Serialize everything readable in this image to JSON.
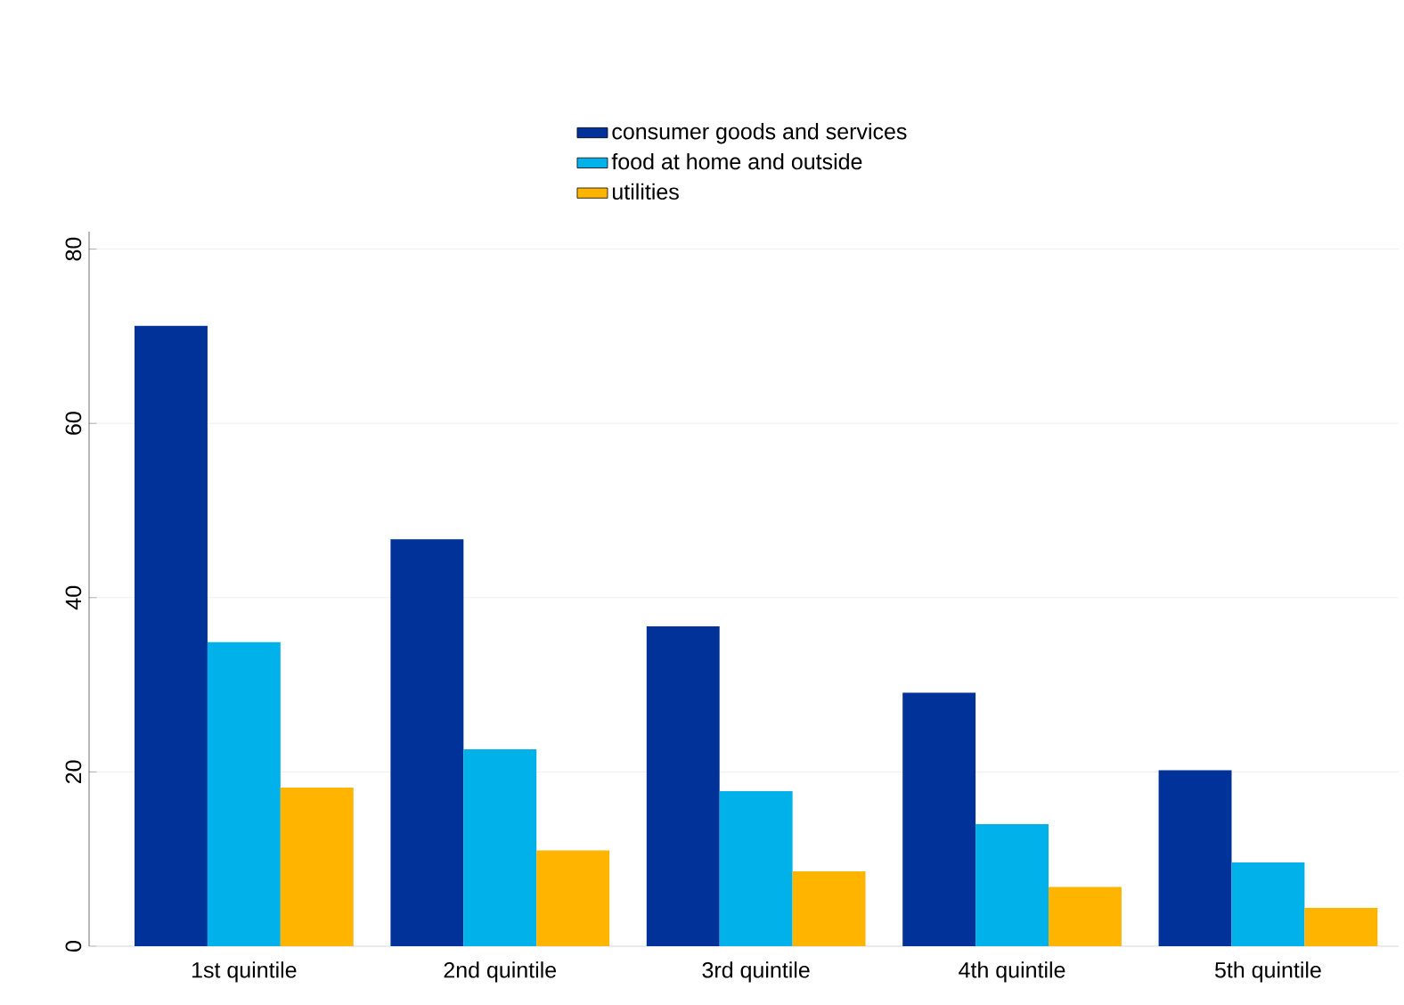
{
  "chart_data": {
    "type": "bar",
    "categories": [
      "1st quintile",
      "2nd quintile",
      "3rd quintile",
      "4th quintile",
      "5th quintile"
    ],
    "series": [
      {
        "name": "consumer goods and services",
        "color": "#003299",
        "values": [
          71.2,
          46.7,
          36.7,
          29.1,
          20.2
        ]
      },
      {
        "name": "food at home and outside",
        "color": "#00b1ea",
        "values": [
          34.9,
          22.6,
          17.8,
          14.0,
          9.6
        ]
      },
      {
        "name": "utilities",
        "color": "#ffb400",
        "values": [
          18.2,
          11.0,
          8.6,
          6.8,
          4.4
        ]
      }
    ],
    "ylim": [
      0,
      82
    ],
    "yticks": [
      0,
      20,
      40,
      60,
      80
    ],
    "grid": "y",
    "legend": "top"
  }
}
